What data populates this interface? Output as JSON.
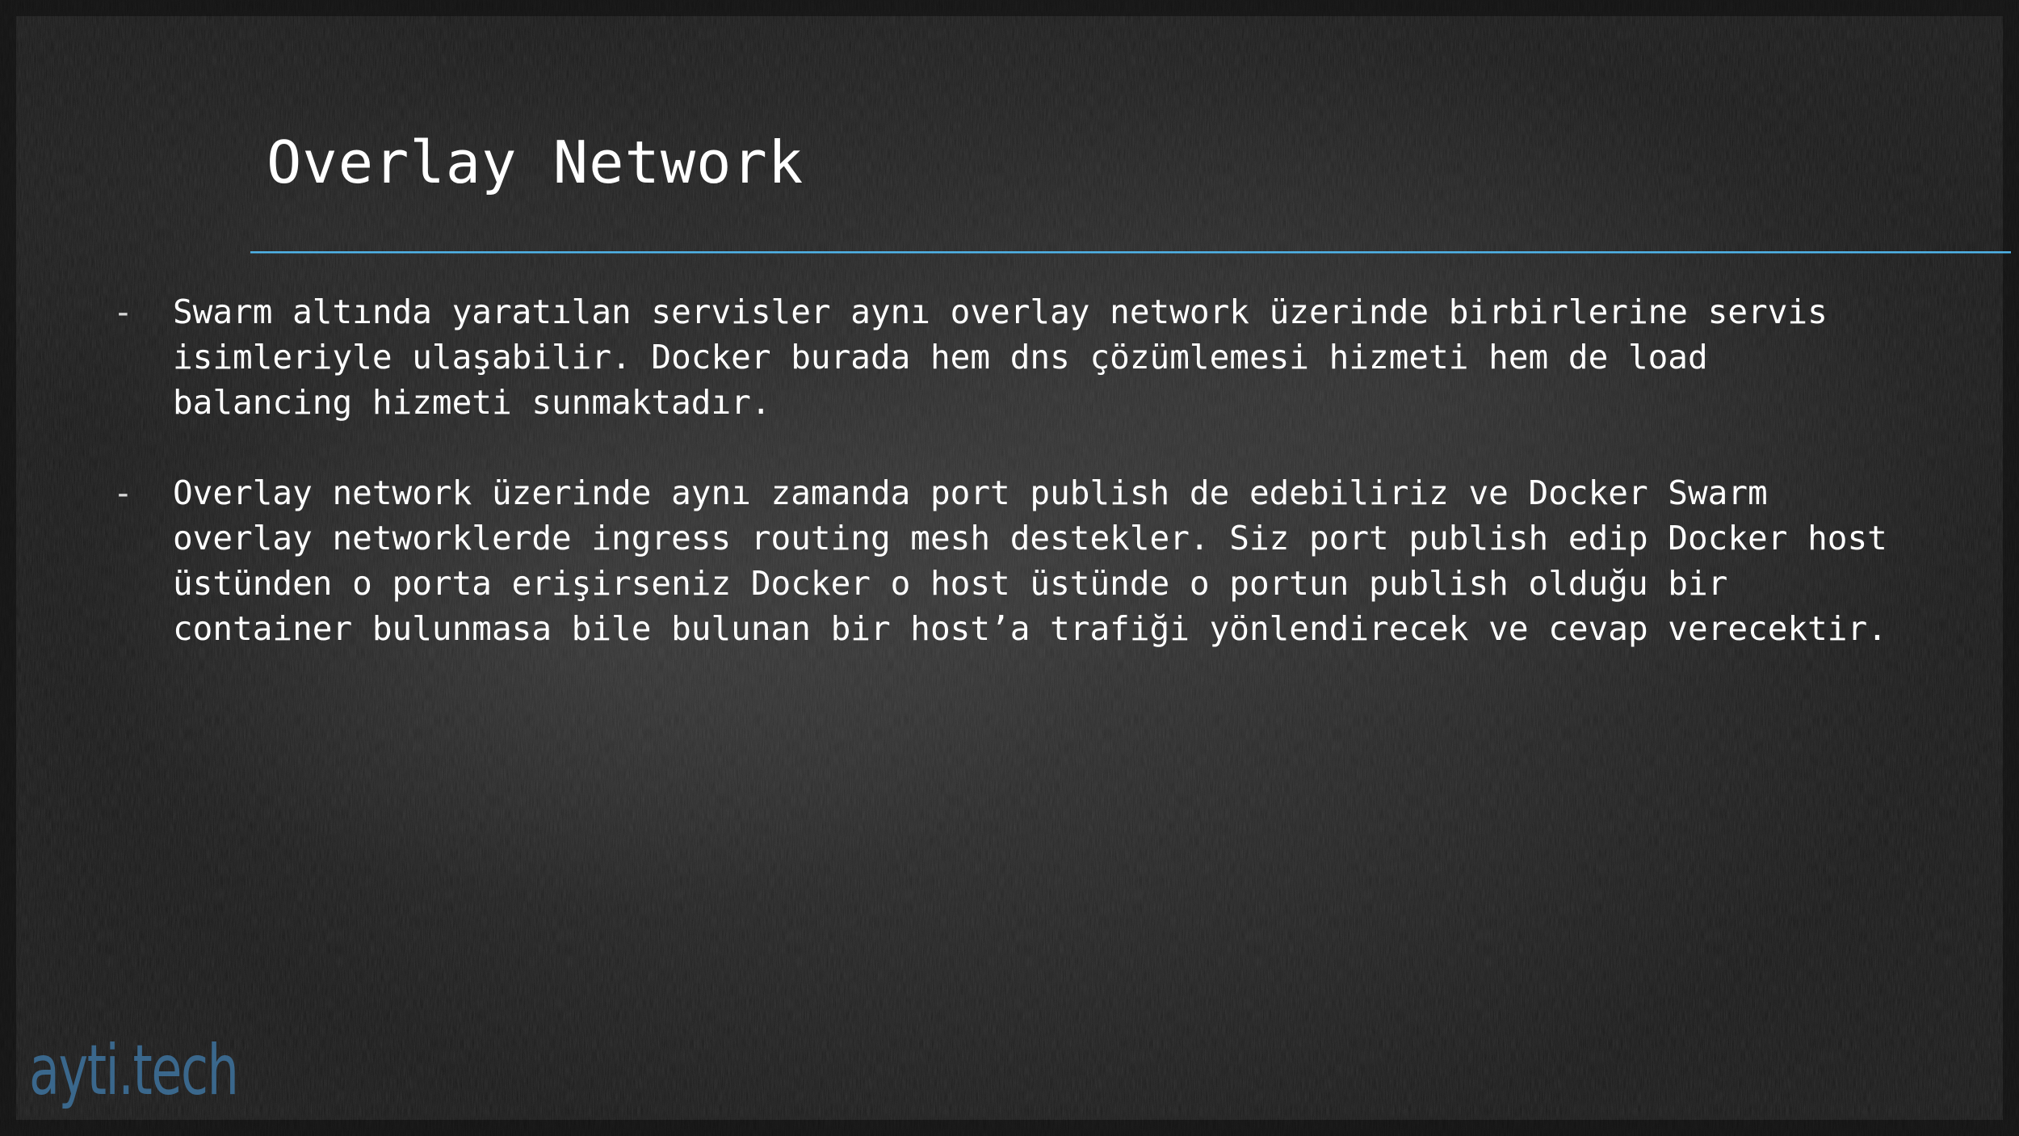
{
  "slide": {
    "title": "Overlay Network",
    "accent_color": "#4fb3e8",
    "bullet_marker": "-",
    "bullets": [
      {
        "text": "Swarm altında yaratılan servisler aynı  overlay network üzerinde birbirlerine servis isimleriyle ulaşabilir. Docker burada hem  dns çözümlemesi hizmeti hem de  load balancing hizmeti sunmaktadır."
      },
      {
        "text": "Overlay network üzerinde aynı zamanda port  publish de edebiliriz ve Docker  Swarm overlay networklerde ingress routing mesh destekler. Siz port  publish edip Docker host üstünden o porta erişirseniz Docker o  host üstünde o portun publish olduğu bir container bulunmasa bile bulunan bir host’a trafiği yönlendirecek ve cevap verecektir."
      }
    ],
    "logo_text": "ayti.tech",
    "logo_color": "#3d6f98"
  }
}
